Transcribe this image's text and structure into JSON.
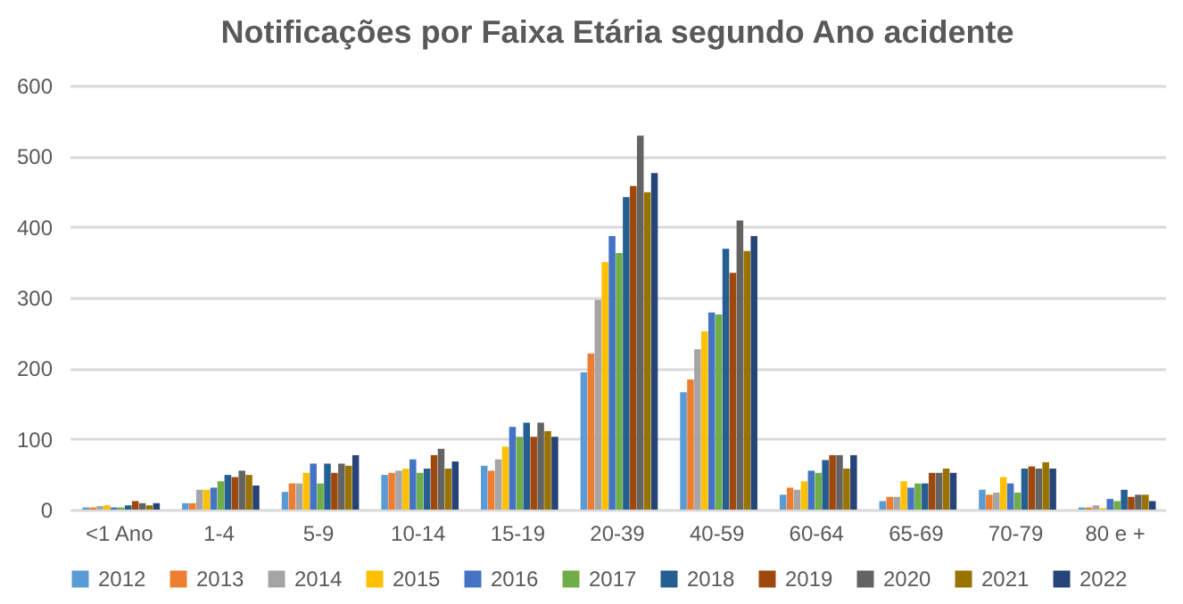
{
  "chart_data": {
    "type": "bar",
    "title": "Notificações por Faixa Etária segundo Ano acidente",
    "categories": [
      "<1 Ano",
      "1-4",
      "5-9",
      "10-14",
      "15-19",
      "20-39",
      "40-59",
      "60-64",
      "65-69",
      "70-79",
      "80 e +"
    ],
    "ylim": [
      0,
      600
    ],
    "yticks": [
      0,
      100,
      200,
      300,
      400,
      500,
      600
    ],
    "grid": "y",
    "legend": "bottom",
    "series": [
      {
        "name": "2012",
        "color": "#5b9bd5",
        "values": [
          3,
          9,
          25,
          49,
          62,
          194,
          166,
          21,
          12,
          28,
          3
        ]
      },
      {
        "name": "2013",
        "color": "#ed7d31",
        "values": [
          3,
          9,
          37,
          52,
          55,
          221,
          184,
          31,
          18,
          21,
          3
        ]
      },
      {
        "name": "2014",
        "color": "#a5a5a5",
        "values": [
          5,
          28,
          37,
          55,
          71,
          297,
          227,
          28,
          18,
          24,
          6
        ]
      },
      {
        "name": "2015",
        "color": "#ffc000",
        "values": [
          6,
          28,
          52,
          58,
          89,
          350,
          252,
          40,
          40,
          46,
          2
        ]
      },
      {
        "name": "2016",
        "color": "#4472c4",
        "values": [
          3,
          31,
          65,
          71,
          117,
          387,
          279,
          55,
          31,
          37,
          15
        ]
      },
      {
        "name": "2017",
        "color": "#70ad47",
        "values": [
          3,
          40,
          37,
          52,
          103,
          363,
          276,
          52,
          37,
          24,
          12
        ]
      },
      {
        "name": "2018",
        "color": "#255e91",
        "values": [
          6,
          49,
          65,
          58,
          123,
          442,
          369,
          70,
          37,
          58,
          28
        ]
      },
      {
        "name": "2019",
        "color": "#9e480e",
        "values": [
          12,
          46,
          52,
          77,
          103,
          458,
          335,
          77,
          52,
          61,
          18
        ]
      },
      {
        "name": "2020",
        "color": "#636363",
        "values": [
          9,
          55,
          65,
          86,
          123,
          529,
          409,
          77,
          52,
          58,
          21
        ]
      },
      {
        "name": "2021",
        "color": "#997300",
        "values": [
          6,
          49,
          62,
          58,
          111,
          449,
          366,
          58,
          58,
          67,
          21
        ]
      },
      {
        "name": "2022",
        "color": "#264478",
        "values": [
          9,
          34,
          77,
          68,
          103,
          476,
          387,
          77,
          52,
          58,
          12
        ]
      }
    ]
  }
}
